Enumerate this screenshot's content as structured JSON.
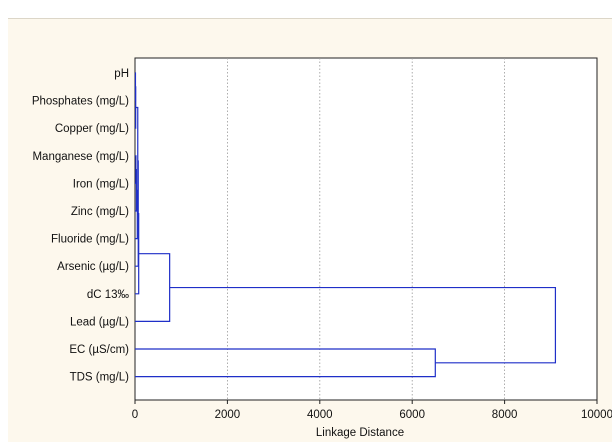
{
  "chart_data": {
    "type": "dendrogram",
    "orientation": "horizontal",
    "xlabel": "Linkage Distance",
    "xlim": [
      0,
      10000
    ],
    "xticks": [
      0,
      2000,
      4000,
      6000,
      8000,
      10000
    ],
    "xtick_labels": [
      "0",
      "2000",
      "4000",
      "6000",
      "8000",
      "10000"
    ],
    "grid": "vertical-dotted",
    "leaves": [
      "pH",
      "Phosphates (mg/L)",
      "Copper (mg/L)",
      "Manganese (mg/L)",
      "Iron (mg/L)",
      "Zinc (mg/L)",
      "Fluoride (mg/L)",
      "Arsenic (µg/L)",
      "dC 13‰",
      "Lead (µg/L)",
      "EC (µS/cm)",
      "TDS (mg/L)"
    ],
    "merges": [
      {
        "left": {
          "leaf": 0
        },
        "right": {
          "leaf": 1
        },
        "height": 10
      },
      {
        "left": {
          "node": 0
        },
        "right": {
          "leaf": 2
        },
        "height": 15
      },
      {
        "left": {
          "leaf": 3
        },
        "right": {
          "leaf": 4
        },
        "height": 20
      },
      {
        "left": {
          "node": 2
        },
        "right": {
          "leaf": 5
        },
        "height": 30
      },
      {
        "left": {
          "node": 3
        },
        "right": {
          "leaf": 6
        },
        "height": 50
      },
      {
        "left": {
          "node": 1
        },
        "right": {
          "node": 4
        },
        "height": 60
      },
      {
        "left": {
          "node": 5
        },
        "right": {
          "leaf": 7
        },
        "height": 70
      },
      {
        "left": {
          "node": 6
        },
        "right": {
          "leaf": 8
        },
        "height": 80
      },
      {
        "left": {
          "node": 7
        },
        "right": {
          "leaf": 9
        },
        "height": 750
      },
      {
        "left": {
          "leaf": 10
        },
        "right": {
          "leaf": 11
        },
        "height": 6500
      },
      {
        "left": {
          "node": 8
        },
        "right": {
          "node": 9
        },
        "height": 9100
      }
    ],
    "line_color": "#1f2fc8"
  }
}
